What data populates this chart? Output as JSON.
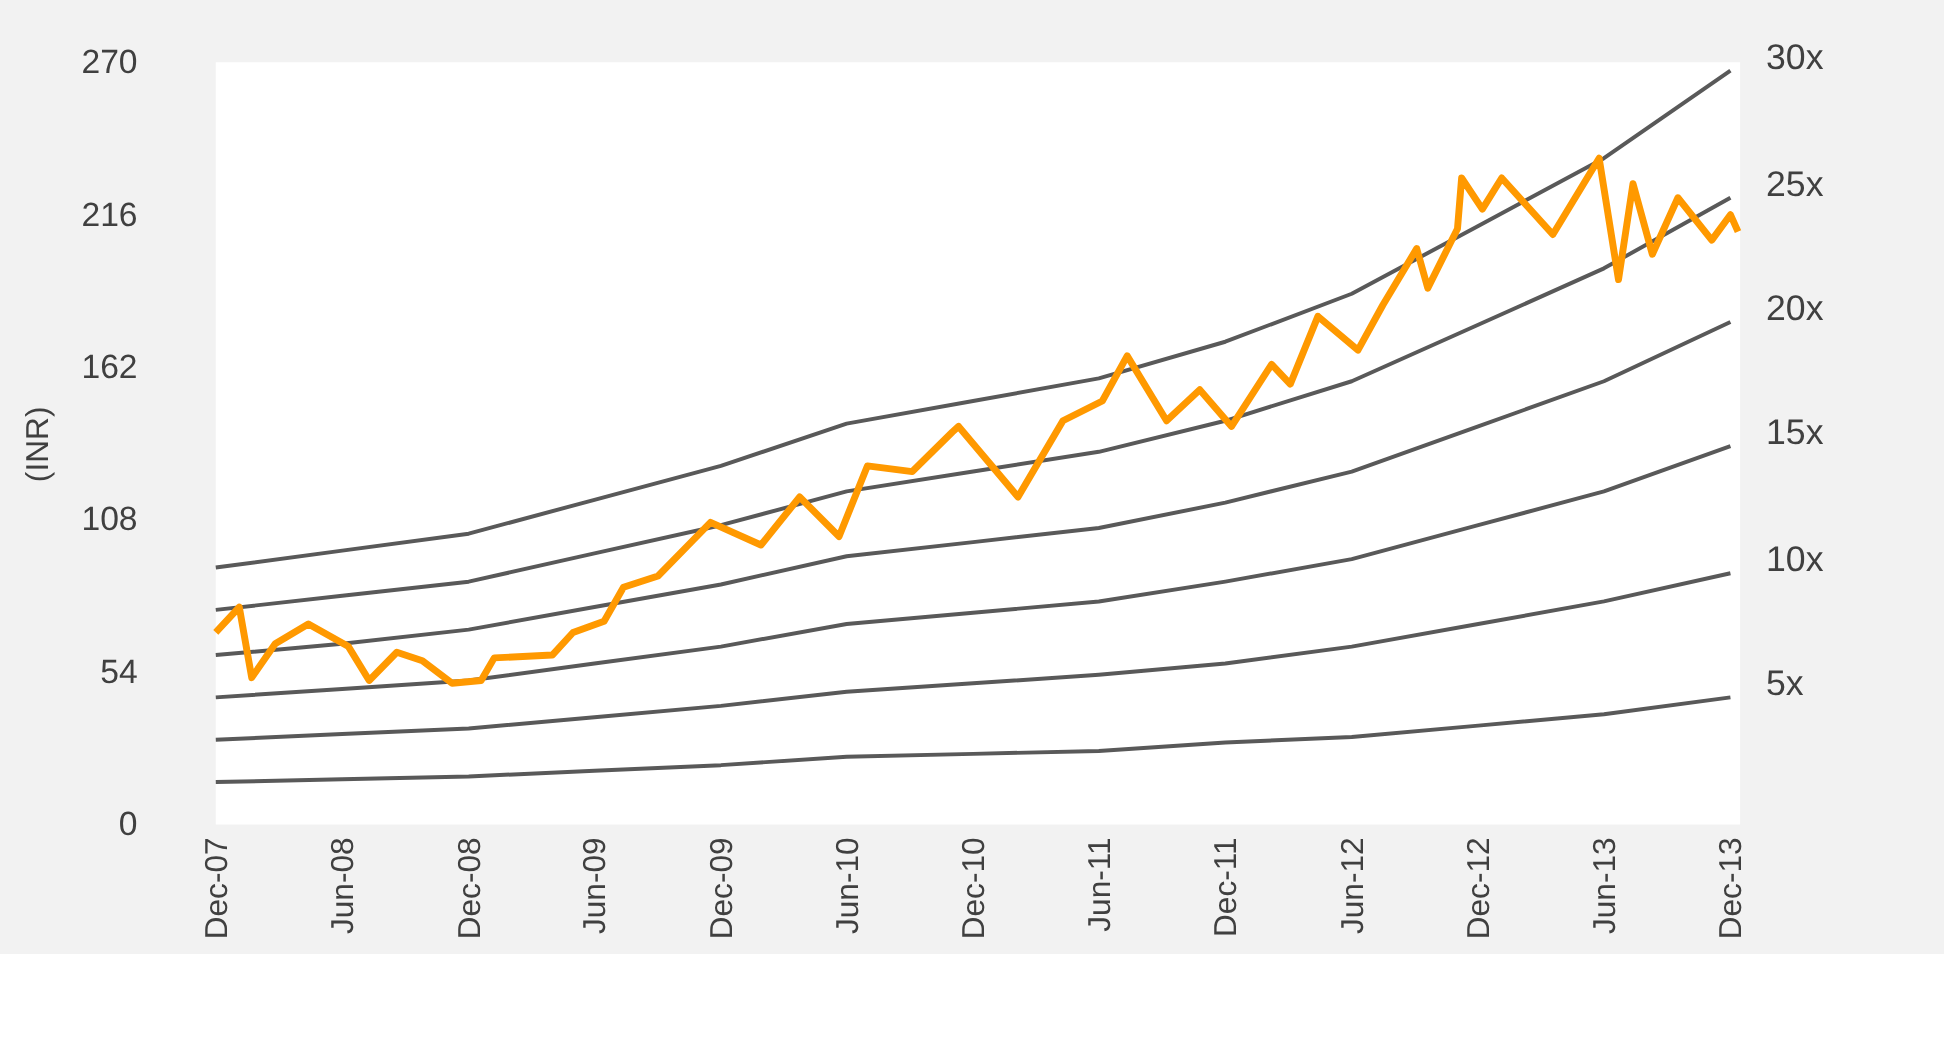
{
  "chart_data": {
    "type": "line",
    "ylabel": "(INR)",
    "ylim": [
      0,
      270
    ],
    "yticks": [
      0,
      54,
      108,
      162,
      216,
      270
    ],
    "xlim": [
      "2007-12-01",
      "2013-12-15"
    ],
    "xticks": [
      {
        "value": "2007-12-01",
        "label": "Dec-07"
      },
      {
        "value": "2008-06-01",
        "label": "Jun-08"
      },
      {
        "value": "2008-12-01",
        "label": "Dec-08"
      },
      {
        "value": "2009-06-01",
        "label": "Jun-09"
      },
      {
        "value": "2009-12-01",
        "label": "Dec-09"
      },
      {
        "value": "2010-06-01",
        "label": "Jun-10"
      },
      {
        "value": "2010-12-01",
        "label": "Dec-10"
      },
      {
        "value": "2011-06-01",
        "label": "Jun-11"
      },
      {
        "value": "2011-12-01",
        "label": "Dec-11"
      },
      {
        "value": "2012-06-01",
        "label": "Jun-12"
      },
      {
        "value": "2012-12-01",
        "label": "Dec-12"
      },
      {
        "value": "2013-06-01",
        "label": "Jun-13"
      },
      {
        "value": "2013-12-01",
        "label": "Dec-13"
      }
    ],
    "x": [
      "2007-12-01",
      "2008-06-01",
      "2008-12-01",
      "2009-06-01",
      "2009-12-01",
      "2010-06-01",
      "2010-12-01",
      "2011-06-01",
      "2011-12-01",
      "2012-06-01",
      "2012-12-01",
      "2013-06-01",
      "2013-12-01"
    ],
    "grid": false,
    "marker": "none",
    "line_style": "solid",
    "series": [
      {
        "name": "30x",
        "color": "#595959",
        "values": [
          91,
          97,
          103,
          115,
          127,
          142,
          150,
          158,
          171,
          188,
          212,
          236,
          267
        ]
      },
      {
        "name": "25x",
        "color": "#595959",
        "values": [
          76,
          81,
          86,
          96,
          106,
          118,
          125,
          132,
          143,
          157,
          177,
          197,
          222
        ]
      },
      {
        "name": "20x",
        "color": "#595959",
        "values": [
          60,
          64,
          69,
          77,
          85,
          95,
          100,
          105,
          114,
          125,
          141,
          157,
          178
        ]
      },
      {
        "name": "15x",
        "color": "#595959",
        "values": [
          45,
          48,
          51,
          57,
          63,
          71,
          75,
          79,
          86,
          94,
          106,
          118,
          134
        ]
      },
      {
        "name": "10x",
        "color": "#595959",
        "values": [
          30,
          32,
          34,
          38,
          42,
          47,
          50,
          53,
          57,
          63,
          71,
          79,
          89
        ]
      },
      {
        "name": "5x",
        "color": "#595959",
        "values": [
          15,
          16,
          17,
          19,
          21,
          24,
          25,
          26,
          29,
          31,
          35,
          39,
          45
        ]
      },
      {
        "color": "#ff9900",
        "x": [
          "2007-12-01",
          "2008-01-04",
          "2008-01-22",
          "2008-02-25",
          "2008-04-13",
          "2008-06-10",
          "2008-07-10",
          "2008-08-19",
          "2008-09-25",
          "2008-11-07",
          "2008-12-19",
          "2009-01-07",
          "2009-04-01",
          "2009-05-01",
          "2009-06-15",
          "2009-07-13",
          "2009-09-01",
          "2009-10-19",
          "2009-11-16",
          "2010-01-28",
          "2010-03-25",
          "2010-05-21",
          "2010-07-01",
          "2010-09-04",
          "2010-11-01",
          "2010-11-10",
          "2011-02-04",
          "2011-04-10",
          "2011-06-06",
          "2011-07-12",
          "2011-09-07",
          "2011-10-25",
          "2011-12-10",
          "2012-02-06",
          "2012-03-04",
          "2012-04-13",
          "2012-06-10",
          "2012-07-16",
          "2012-09-03",
          "2012-09-19",
          "2012-11-01",
          "2012-11-07",
          "2012-12-07",
          "2013-01-04",
          "2013-03-19",
          "2013-05-25",
          "2013-06-22",
          "2013-07-13",
          "2013-08-10",
          "2013-09-16",
          "2013-11-04",
          "2013-12-01",
          "2013-12-12"
        ],
        "values": [
          68,
          77,
          52,
          64,
          71,
          63,
          51,
          61,
          58,
          50,
          51,
          59,
          60,
          68,
          72,
          84,
          88,
          100,
          107,
          99,
          116,
          102,
          127,
          125,
          139,
          141,
          116,
          143,
          150,
          166,
          143,
          154,
          141,
          163,
          156,
          180,
          168,
          184,
          204,
          190,
          211,
          229,
          218,
          229,
          209,
          236,
          193,
          227,
          202,
          222,
          207,
          216,
          210
        ]
      }
    ]
  }
}
